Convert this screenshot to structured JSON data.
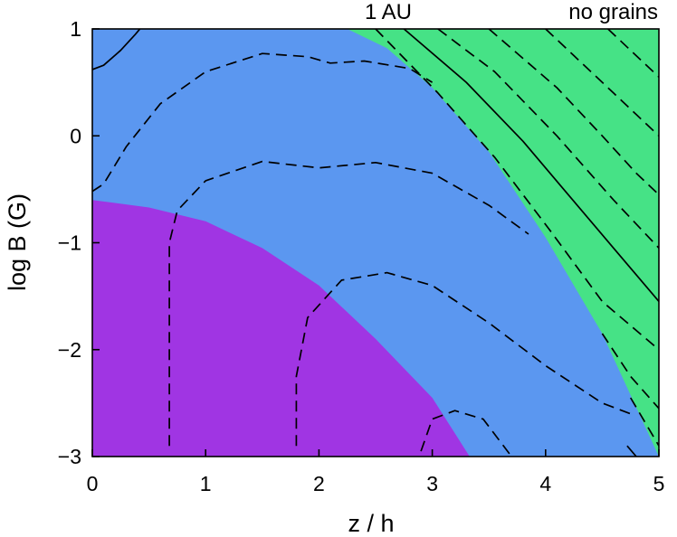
{
  "chart_data": {
    "type": "heatmap",
    "xlabel": "z / h",
    "ylabel": "log B (G)",
    "xlim": [
      0,
      5
    ],
    "ylim": [
      -3,
      1
    ],
    "x_ticks": [
      0,
      1,
      2,
      3,
      4,
      5
    ],
    "x_tick_labels": [
      "0",
      "1",
      "2",
      "3",
      "4",
      "5"
    ],
    "y_ticks": [
      1,
      0,
      -1,
      -2,
      -3
    ],
    "y_tick_labels": [
      "1",
      "0",
      "−1",
      "−2",
      "−3"
    ],
    "annotations": [
      "1 AU",
      "no grains"
    ],
    "region_colors": {
      "purple": "#a035e3",
      "blue": "#5b97f0",
      "green": "#46e286"
    },
    "regions": [
      {
        "color": "purple",
        "boundary": [
          [
            0,
            -0.6
          ],
          [
            0.5,
            -0.67
          ],
          [
            1.0,
            -0.8
          ],
          [
            1.5,
            -1.05
          ],
          [
            2.0,
            -1.4
          ],
          [
            2.5,
            -1.9
          ],
          [
            3.0,
            -2.45
          ],
          [
            3.33,
            -3.0
          ]
        ]
      },
      {
        "color": "green",
        "boundary": [
          [
            2.25,
            1.0
          ],
          [
            2.6,
            0.82
          ],
          [
            3.0,
            0.45
          ],
          [
            3.5,
            -0.15
          ],
          [
            4.0,
            -0.95
          ],
          [
            4.5,
            -1.85
          ],
          [
            5.0,
            -3.0
          ]
        ]
      }
    ],
    "contours": [
      {
        "style": "solid",
        "points": [
          [
            0.0,
            0.62
          ],
          [
            0.1,
            0.66
          ],
          [
            0.25,
            0.8
          ],
          [
            0.38,
            0.95
          ],
          [
            0.42,
            1.0
          ]
        ]
      },
      {
        "style": "dashed",
        "points": [
          [
            0.0,
            -0.52
          ],
          [
            0.1,
            -0.45
          ],
          [
            0.3,
            -0.1
          ],
          [
            0.6,
            0.3
          ],
          [
            1.0,
            0.6
          ],
          [
            1.5,
            0.77
          ],
          [
            1.9,
            0.74
          ],
          [
            2.1,
            0.68
          ],
          [
            2.4,
            0.7
          ],
          [
            2.8,
            0.63
          ],
          [
            3.0,
            0.5
          ]
        ]
      },
      {
        "style": "dashed",
        "points": [
          [
            0.68,
            -2.9
          ],
          [
            0.68,
            -1.0
          ],
          [
            0.75,
            -0.7
          ],
          [
            1.0,
            -0.42
          ],
          [
            1.5,
            -0.24
          ],
          [
            2.0,
            -0.3
          ],
          [
            2.5,
            -0.25
          ],
          [
            3.0,
            -0.35
          ],
          [
            3.5,
            -0.65
          ],
          [
            3.85,
            -0.92
          ]
        ]
      },
      {
        "style": "dashed",
        "points": [
          [
            1.8,
            -2.9
          ],
          [
            1.8,
            -2.25
          ],
          [
            1.9,
            -1.7
          ],
          [
            2.2,
            -1.35
          ],
          [
            2.6,
            -1.28
          ],
          [
            3.0,
            -1.4
          ],
          [
            3.5,
            -1.75
          ],
          [
            4.0,
            -2.15
          ],
          [
            4.5,
            -2.5
          ],
          [
            4.75,
            -2.6
          ]
        ]
      },
      {
        "style": "dashed",
        "points": [
          [
            2.9,
            -2.95
          ],
          [
            3.0,
            -2.65
          ],
          [
            3.2,
            -2.57
          ],
          [
            3.45,
            -2.65
          ],
          [
            3.7,
            -3.0
          ]
        ]
      },
      {
        "style": "dashed",
        "points": [
          [
            3.5,
            1.0
          ],
          [
            4.1,
            0.45
          ],
          [
            4.5,
            0.0
          ],
          [
            4.8,
            -0.35
          ],
          [
            5.0,
            -0.55
          ]
        ]
      },
      {
        "style": "dashed",
        "points": [
          [
            3.05,
            1.0
          ],
          [
            3.55,
            0.6
          ],
          [
            4.1,
            0.0
          ],
          [
            4.6,
            -0.6
          ],
          [
            5.0,
            -1.05
          ]
        ]
      },
      {
        "style": "solid",
        "points": [
          [
            2.75,
            1.0
          ],
          [
            3.3,
            0.5
          ],
          [
            3.8,
            -0.05
          ],
          [
            4.2,
            -0.55
          ],
          [
            4.6,
            -1.05
          ],
          [
            5.0,
            -1.55
          ]
        ]
      },
      {
        "style": "dashed",
        "points": [
          [
            2.5,
            1.0
          ],
          [
            3.05,
            0.4
          ],
          [
            3.55,
            -0.2
          ],
          [
            4.05,
            -0.9
          ],
          [
            4.5,
            -1.55
          ],
          [
            5.0,
            -2.0
          ]
        ]
      },
      {
        "style": "dashed",
        "points": [
          [
            4.5,
            -1.85
          ],
          [
            4.75,
            -2.25
          ],
          [
            5.0,
            -2.55
          ]
        ]
      },
      {
        "style": "dashed",
        "points": [
          [
            4.75,
            -2.45
          ],
          [
            5.0,
            -2.9
          ]
        ]
      },
      {
        "style": "solid",
        "points": [
          [
            4.72,
            -2.9
          ],
          [
            4.8,
            -3.0
          ]
        ]
      },
      {
        "style": "dashed",
        "points": [
          [
            4.0,
            1.0
          ],
          [
            4.6,
            0.4
          ],
          [
            5.0,
            0.0
          ]
        ]
      },
      {
        "style": "dashed",
        "points": [
          [
            4.55,
            1.0
          ],
          [
            4.85,
            0.7
          ],
          [
            5.0,
            0.55
          ]
        ]
      }
    ]
  }
}
